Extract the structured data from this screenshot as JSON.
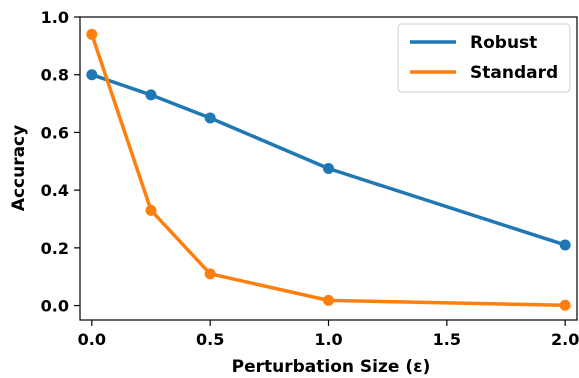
{
  "chart_data": {
    "type": "line",
    "title": "",
    "xlabel": "Perturbation Size (ε)",
    "ylabel": "Accuracy",
    "xlim": [
      -0.05,
      2.05
    ],
    "ylim": [
      -0.05,
      1.0
    ],
    "xticks": [
      "0.0",
      "0.5",
      "1.0",
      "1.5",
      "2.0"
    ],
    "yticks": [
      "0.0",
      "0.2",
      "0.4",
      "0.6",
      "0.8",
      "1.0"
    ],
    "grid": false,
    "legend_position": "top-right",
    "x": [
      0.0,
      0.25,
      0.5,
      1.0,
      2.0
    ],
    "series": [
      {
        "name": "Robust",
        "color": "#1f77b4",
        "values": [
          0.8,
          0.73,
          0.65,
          0.475,
          0.21
        ]
      },
      {
        "name": "Standard",
        "color": "#ff7f0e",
        "values": [
          0.94,
          0.33,
          0.11,
          0.018,
          0.001
        ]
      }
    ]
  }
}
